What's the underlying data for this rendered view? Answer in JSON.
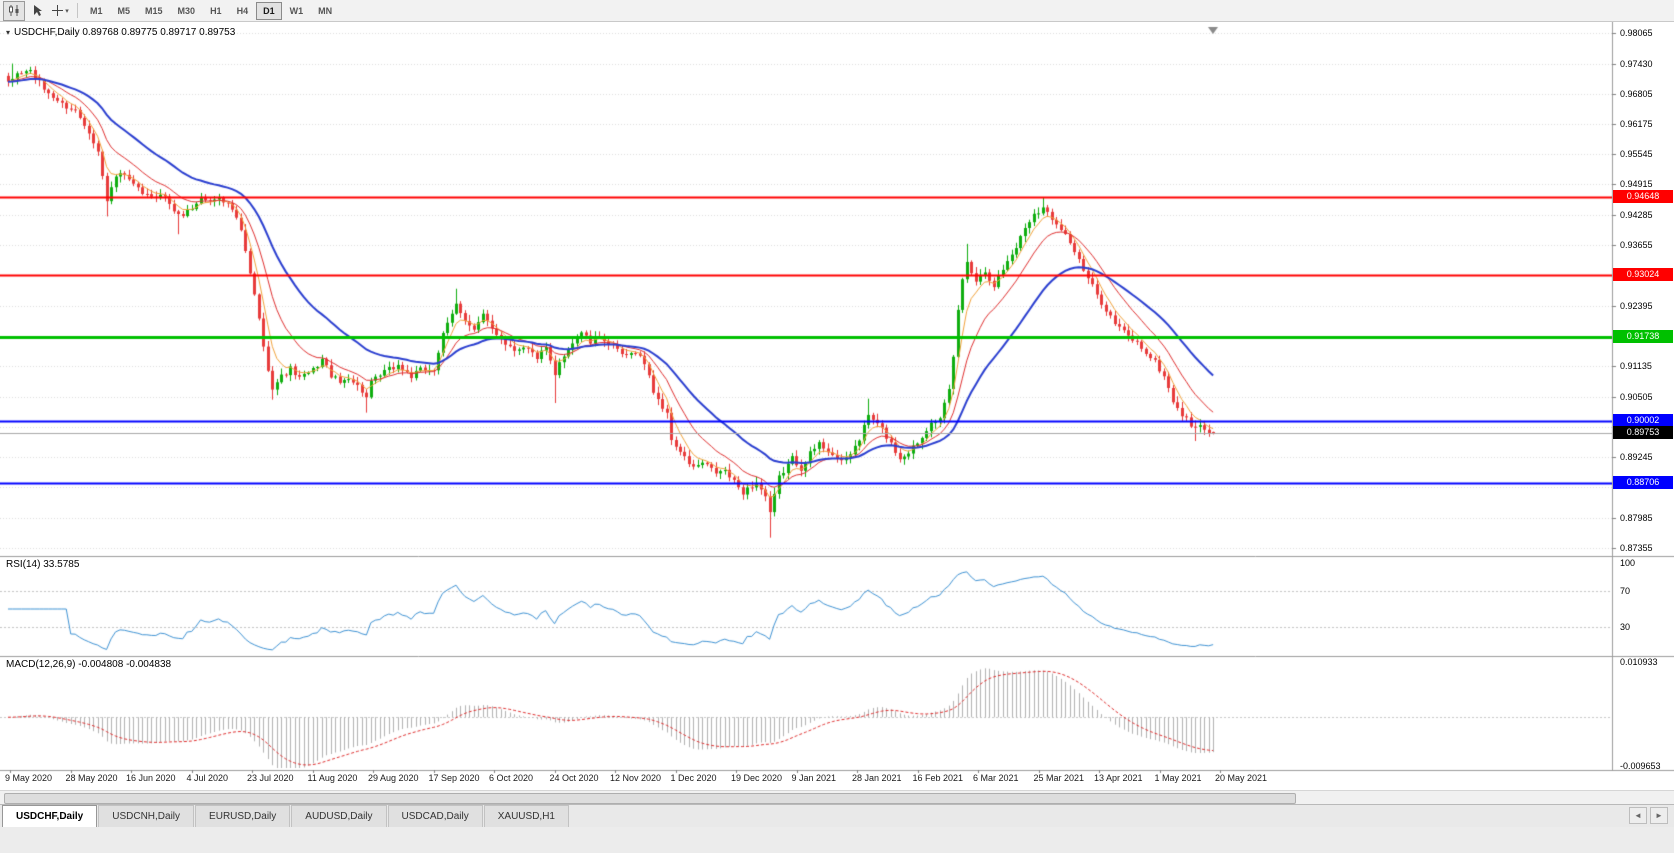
{
  "toolbar": {
    "buttons": [
      {
        "name": "chart-window",
        "icon": "candlestick-chart-icon"
      },
      {
        "name": "cursor",
        "icon": "cursor-icon"
      },
      {
        "name": "crosshair",
        "icon": "crosshair-icon",
        "caret": "▾"
      }
    ],
    "timeframes": [
      "M1",
      "M5",
      "M15",
      "M30",
      "H1",
      "H4",
      "D1",
      "W1",
      "MN"
    ],
    "active_timeframe": "D1"
  },
  "chart": {
    "header": "USDCHF,Daily 0.89768 0.89775 0.89717 0.89753",
    "symbol": "USDCHF",
    "period": "Daily",
    "ohlc": {
      "open": "0.89768",
      "high": "0.89775",
      "low": "0.89717",
      "close": "0.89753"
    },
    "header_marker": "▾",
    "price_axis": [
      {
        "label": "0.98065",
        "value": 0.98065,
        "visible": true
      },
      {
        "label": "0.97430",
        "value": 0.9743,
        "visible": true
      },
      {
        "label": "0.96805",
        "value": 0.96805,
        "visible": true
      },
      {
        "label": "0.96175",
        "value": 0.96175,
        "visible": true
      },
      {
        "label": "0.95545",
        "value": 0.95545,
        "visible": true
      },
      {
        "label": "0.94915",
        "value": 0.94915,
        "visible": true
      },
      {
        "label": "0.94285",
        "value": 0.94285,
        "visible": true
      },
      {
        "label": "0.93655",
        "value": 0.93655,
        "visible": true
      },
      {
        "label": "0.93025",
        "value": 0.93025,
        "visible": false
      },
      {
        "label": "0.92395",
        "value": 0.92395,
        "visible": true
      },
      {
        "label": "0.91765",
        "value": 0.91765,
        "visible": false
      },
      {
        "label": "0.91135",
        "value": 0.91135,
        "visible": true
      },
      {
        "label": "0.90505",
        "value": 0.90505,
        "visible": true
      },
      {
        "label": "0.89875",
        "value": 0.89875,
        "visible": false
      },
      {
        "label": "0.89245",
        "value": 0.89245,
        "visible": true
      },
      {
        "label": "0.88615",
        "value": 0.88615,
        "visible": false
      },
      {
        "label": "0.87985",
        "value": 0.87985,
        "visible": true
      },
      {
        "label": "0.87355",
        "value": 0.87355,
        "visible": true
      }
    ],
    "hlines": [
      {
        "label": "0.94648",
        "value": 0.94648,
        "color": "#ff0000",
        "width": 2
      },
      {
        "label": "0.93024",
        "value": 0.93024,
        "color": "#ff0000",
        "width": 2
      },
      {
        "label": "0.91738",
        "value": 0.91738,
        "color": "#00c000",
        "width": 3
      },
      {
        "label": "0.90002",
        "value": 0.90002,
        "color": "#0000ff",
        "width": 2
      },
      {
        "label": "0.88706",
        "value": 0.88706,
        "color": "#0000ff",
        "width": 2
      }
    ],
    "bid": {
      "label": "0.89753",
      "value": 0.89753,
      "line_color": "#a8a8a8",
      "label_bg": "#000000"
    },
    "dates": [
      "9 May 2020",
      "28 May 2020",
      "16 Jun 2020",
      "4 Jul 2020",
      "23 Jul 2020",
      "11 Aug 2020",
      "29 Aug 2020",
      "17 Sep 2020",
      "6 Oct 2020",
      "24 Oct 2020",
      "12 Nov 2020",
      "1 Dec 2020",
      "19 Dec 2020",
      "9 Jan 2021",
      "28 Jan 2021",
      "16 Feb 2021",
      "6 Mar 2021",
      "25 Mar 2021",
      "13 Apr 2021",
      "1 May 2021",
      "20 May 2021"
    ],
    "colors": {
      "up": "#0fae0f",
      "down": "#e83b3b",
      "ma_fast": "#f2a33c",
      "ma_mid": "#e03030",
      "ma_slow": "#2b3fd0",
      "grid": "#dcdcdc",
      "separator": "#9b9b9b"
    }
  },
  "rsi": {
    "label": "RSI(14) 33.5785",
    "value": "33.5785",
    "axis": [
      "100",
      "70",
      "30"
    ],
    "axis_values": [
      100,
      70,
      30
    ],
    "levels": [
      70,
      30
    ],
    "color": "#3f93d4"
  },
  "macd": {
    "label": "MACD(12,26,9) -0.004808 -0.004838",
    "value_main": "-0.004808",
    "value_signal": "-0.004838",
    "axis_max": "0.010933",
    "axis_min": "-0.009653",
    "axis_max_value": 0.010933,
    "axis_min_value": -0.009653,
    "histogram_color": "#b2b2b2",
    "signal_color": "#e03030"
  },
  "tabs": {
    "items": [
      {
        "label": "USDCHF,Daily",
        "active": true
      },
      {
        "label": "USDCNH,Daily",
        "active": false
      },
      {
        "label": "EURUSD,Daily",
        "active": false
      },
      {
        "label": "AUDUSD,Daily",
        "active": false
      },
      {
        "label": "USDCAD,Daily",
        "active": false
      },
      {
        "label": "XAUUSD,H1",
        "active": false
      }
    ],
    "nav_left": "◄",
    "nav_right": "►"
  },
  "chart_data": {
    "type": "candlestick",
    "symbol": "USDCHF",
    "timeframe": "D1",
    "bars": 270,
    "last": {
      "open": 0.89768,
      "high": 0.89775,
      "low": 0.89717,
      "close": 0.89753
    },
    "hline_values": [
      0.94648,
      0.93024,
      0.91738,
      0.90002,
      0.88706
    ],
    "indicators": {
      "rsi_period": 14,
      "macd": [
        12,
        26,
        9
      ],
      "ma_periods": [
        5,
        12,
        28
      ]
    },
    "waypoints": [
      [
        0,
        0.97
      ],
      [
        2,
        0.9722
      ],
      [
        5,
        0.9728
      ],
      [
        8,
        0.969
      ],
      [
        12,
        0.9658
      ],
      [
        15,
        0.9645
      ],
      [
        18,
        0.9603
      ],
      [
        20,
        0.956
      ],
      [
        22,
        0.9455
      ],
      [
        23,
        0.949
      ],
      [
        25,
        0.9515
      ],
      [
        27,
        0.9498
      ],
      [
        29,
        0.948
      ],
      [
        32,
        0.9462
      ],
      [
        34,
        0.9475
      ],
      [
        36,
        0.9452
      ],
      [
        38,
        0.9425
      ],
      [
        41,
        0.9442
      ],
      [
        43,
        0.9465
      ],
      [
        45,
        0.9455
      ],
      [
        47,
        0.9468
      ],
      [
        50,
        0.944
      ],
      [
        52,
        0.9395
      ],
      [
        54,
        0.9305
      ],
      [
        56,
        0.9215
      ],
      [
        57,
        0.915
      ],
      [
        59,
        0.907
      ],
      [
        61,
        0.9092
      ],
      [
        63,
        0.9108
      ],
      [
        65,
        0.9088
      ],
      [
        68,
        0.9105
      ],
      [
        70,
        0.9128
      ],
      [
        72,
        0.9095
      ],
      [
        74,
        0.9078
      ],
      [
        76,
        0.9092
      ],
      [
        79,
        0.9062
      ],
      [
        80,
        0.9048
      ],
      [
        81,
        0.9078
      ],
      [
        84,
        0.9102
      ],
      [
        87,
        0.9115
      ],
      [
        90,
        0.9092
      ],
      [
        92,
        0.9105
      ],
      [
        95,
        0.9108
      ],
      [
        97,
        0.9178
      ],
      [
        100,
        0.9242
      ],
      [
        102,
        0.9212
      ],
      [
        104,
        0.9188
      ],
      [
        106,
        0.9218
      ],
      [
        108,
        0.9192
      ],
      [
        111,
        0.9162
      ],
      [
        113,
        0.9148
      ],
      [
        115,
        0.9156
      ],
      [
        118,
        0.9132
      ],
      [
        120,
        0.915
      ],
      [
        122,
        0.9092
      ],
      [
        123,
        0.912
      ],
      [
        125,
        0.9152
      ],
      [
        128,
        0.9185
      ],
      [
        130,
        0.9162
      ],
      [
        132,
        0.9178
      ],
      [
        135,
        0.9152
      ],
      [
        138,
        0.9132
      ],
      [
        140,
        0.9146
      ],
      [
        142,
        0.912
      ],
      [
        144,
        0.9062
      ],
      [
        147,
        0.9012
      ],
      [
        148,
        0.8962
      ],
      [
        151,
        0.8922
      ],
      [
        153,
        0.8902
      ],
      [
        155,
        0.8912
      ],
      [
        158,
        0.8892
      ],
      [
        160,
        0.8896
      ],
      [
        162,
        0.8872
      ],
      [
        164,
        0.8852
      ],
      [
        167,
        0.8872
      ],
      [
        169,
        0.8842
      ],
      [
        170,
        0.8805
      ],
      [
        172,
        0.8882
      ],
      [
        175,
        0.8922
      ],
      [
        177,
        0.8902
      ],
      [
        179,
        0.8932
      ],
      [
        181,
        0.8952
      ],
      [
        184,
        0.8932
      ],
      [
        186,
        0.8912
      ],
      [
        188,
        0.8932
      ],
      [
        190,
        0.8962
      ],
      [
        192,
        0.9012
      ],
      [
        195,
        0.8982
      ],
      [
        197,
        0.8952
      ],
      [
        199,
        0.8922
      ],
      [
        201,
        0.8936
      ],
      [
        204,
        0.8966
      ],
      [
        206,
        0.9002
      ],
      [
        208,
        0.9002
      ],
      [
        210,
        0.9062
      ],
      [
        211,
        0.9132
      ],
      [
        212,
        0.9232
      ],
      [
        213,
        0.9292
      ],
      [
        214,
        0.9332
      ],
      [
        216,
        0.9292
      ],
      [
        218,
        0.9312
      ],
      [
        220,
        0.9282
      ],
      [
        223,
        0.9332
      ],
      [
        225,
        0.9362
      ],
      [
        227,
        0.9402
      ],
      [
        229,
        0.9432
      ],
      [
        231,
        0.9442
      ],
      [
        233,
        0.9422
      ],
      [
        235,
        0.9402
      ],
      [
        237,
        0.9372
      ],
      [
        239,
        0.9332
      ],
      [
        240,
        0.9312
      ],
      [
        243,
        0.9262
      ],
      [
        245,
        0.9232
      ],
      [
        247,
        0.9202
      ],
      [
        250,
        0.9176
      ],
      [
        252,
        0.9162
      ],
      [
        254,
        0.9142
      ],
      [
        256,
        0.9122
      ],
      [
        258,
        0.9092
      ],
      [
        260,
        0.9042
      ],
      [
        262,
        0.9012
      ],
      [
        264,
        0.8992
      ],
      [
        266,
        0.8986
      ],
      [
        268,
        0.8978
      ],
      [
        269,
        0.89753
      ]
    ],
    "spikes": [
      {
        "i": 1,
        "high": 0.9743
      },
      {
        "i": 22,
        "low": 0.9425
      },
      {
        "i": 38,
        "low": 0.9388
      },
      {
        "i": 59,
        "low": 0.9044
      },
      {
        "i": 80,
        "low": 0.9017
      },
      {
        "i": 100,
        "high": 0.92747
      },
      {
        "i": 122,
        "low": 0.9037
      },
      {
        "i": 170,
        "low": 0.8757
      },
      {
        "i": 192,
        "high": 0.9046
      },
      {
        "i": 214,
        "high": 0.9368
      },
      {
        "i": 231,
        "high": 0.94648
      },
      {
        "i": 265,
        "low": 0.8958
      }
    ]
  }
}
